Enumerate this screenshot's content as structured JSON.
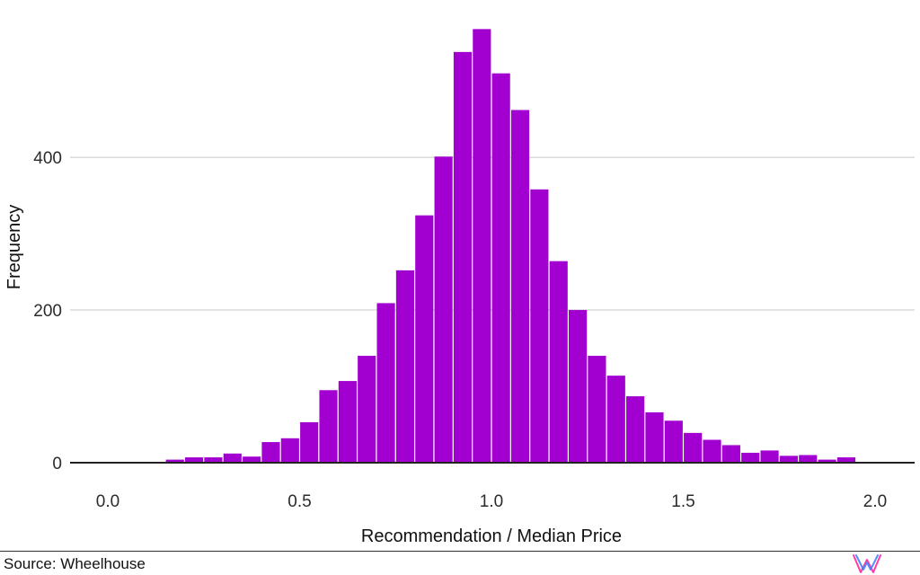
{
  "source": "Source: Wheelhouse",
  "logo_icon": "wheelhouse-w-logo-icon",
  "colors": {
    "bar": "#a100d1",
    "grid": "#c8c8c8",
    "baseline": "#222222",
    "logo_pink": "#ff3ea5",
    "logo_blue": "#3b7bff"
  },
  "chart_data": {
    "type": "bar",
    "title": "",
    "xlabel": "Recommendation / Median Price",
    "ylabel": "Frequency",
    "xlim": [
      -0.1,
      2.1
    ],
    "ylim": [
      0,
      570
    ],
    "bin_width": 0.05,
    "x_ticks": [
      "0.0",
      "0.5",
      "1.0",
      "1.5",
      "2.0"
    ],
    "y_ticks": [
      "0",
      "200",
      "400"
    ],
    "grid": "horizontal",
    "bins": [
      {
        "x": 0.175,
        "count": 4
      },
      {
        "x": 0.225,
        "count": 7
      },
      {
        "x": 0.275,
        "count": 7
      },
      {
        "x": 0.325,
        "count": 12
      },
      {
        "x": 0.375,
        "count": 8
      },
      {
        "x": 0.425,
        "count": 27
      },
      {
        "x": 0.475,
        "count": 32
      },
      {
        "x": 0.525,
        "count": 53
      },
      {
        "x": 0.575,
        "count": 95
      },
      {
        "x": 0.625,
        "count": 107
      },
      {
        "x": 0.675,
        "count": 140
      },
      {
        "x": 0.725,
        "count": 209
      },
      {
        "x": 0.775,
        "count": 252
      },
      {
        "x": 0.825,
        "count": 324
      },
      {
        "x": 0.875,
        "count": 401
      },
      {
        "x": 0.925,
        "count": 538
      },
      {
        "x": 0.975,
        "count": 568
      },
      {
        "x": 1.025,
        "count": 510
      },
      {
        "x": 1.075,
        "count": 462
      },
      {
        "x": 1.125,
        "count": 358
      },
      {
        "x": 1.175,
        "count": 264
      },
      {
        "x": 1.225,
        "count": 200
      },
      {
        "x": 1.275,
        "count": 140
      },
      {
        "x": 1.325,
        "count": 114
      },
      {
        "x": 1.375,
        "count": 87
      },
      {
        "x": 1.425,
        "count": 66
      },
      {
        "x": 1.475,
        "count": 55
      },
      {
        "x": 1.525,
        "count": 39
      },
      {
        "x": 1.575,
        "count": 30
      },
      {
        "x": 1.625,
        "count": 23
      },
      {
        "x": 1.675,
        "count": 13
      },
      {
        "x": 1.725,
        "count": 16
      },
      {
        "x": 1.775,
        "count": 9
      },
      {
        "x": 1.825,
        "count": 10
      },
      {
        "x": 1.875,
        "count": 4
      },
      {
        "x": 1.925,
        "count": 7
      }
    ]
  }
}
